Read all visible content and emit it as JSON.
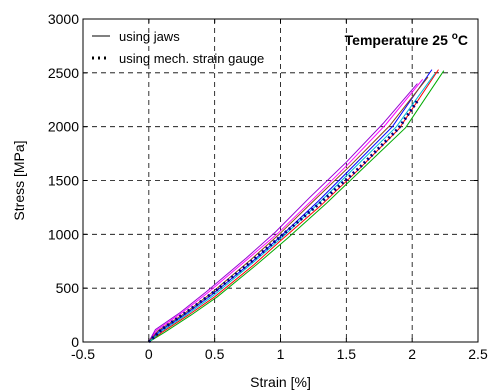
{
  "chart_data": {
    "type": "line",
    "xlabel": "Strain   [%]",
    "ylabel": "Stress   [MPa]",
    "xlim": [
      -0.5,
      2.5
    ],
    "ylim": [
      0,
      3000
    ],
    "xticks": [
      -0.5,
      0,
      0.5,
      1,
      1.5,
      2,
      2.5
    ],
    "xtick_labels": [
      "-0.5",
      "0",
      "0.5",
      "1",
      "1.5",
      "2",
      "2.5"
    ],
    "yticks": [
      0,
      500,
      1000,
      1500,
      2000,
      2500,
      3000
    ],
    "ytick_labels": [
      "0",
      "500",
      "1000",
      "1500",
      "2000",
      "2500",
      "3000"
    ],
    "grid": "dashed",
    "legend_position": "top-left",
    "annotation": {
      "text_before": "Temperature 25 ",
      "superscript": "o",
      "text_after": "C"
    },
    "legend": [
      {
        "label": "using jaws",
        "style": "solid"
      },
      {
        "label": "using mech. strain gauge",
        "style": "dotted"
      }
    ],
    "series": [
      {
        "name": "using jaws",
        "style": "solid",
        "color": "#ff0000",
        "x": [
          0,
          0.1,
          0.3,
          0.5,
          0.8,
          1.0,
          1.3,
          1.6,
          1.9,
          2.2
        ],
        "y": [
          0,
          90,
          250,
          420,
          720,
          940,
          1260,
          1610,
          1980,
          2530
        ]
      },
      {
        "style": "solid",
        "color": "#00aa00",
        "x": [
          0,
          0.12,
          0.32,
          0.52,
          0.82,
          1.05,
          1.35,
          1.65,
          1.95,
          2.24
        ],
        "y": [
          0,
          90,
          250,
          420,
          720,
          960,
          1290,
          1640,
          1990,
          2520
        ]
      },
      {
        "style": "solid",
        "color": "#0000ff",
        "x": [
          0,
          0.08,
          0.28,
          0.48,
          0.78,
          1.0,
          1.28,
          1.55,
          1.85,
          2.15
        ],
        "y": [
          0,
          100,
          260,
          440,
          740,
          980,
          1300,
          1630,
          2000,
          2530
        ]
      },
      {
        "style": "solid",
        "color": "#ff00ff",
        "x": [
          0,
          0.06,
          0.25,
          0.45,
          0.75,
          0.98,
          1.25,
          1.52,
          1.8,
          2.08
        ],
        "y": [
          0,
          110,
          270,
          460,
          770,
          1010,
          1330,
          1660,
          2020,
          2440
        ]
      },
      {
        "style": "solid",
        "color": "#9400d3",
        "x": [
          0,
          0.05,
          0.24,
          0.44,
          0.74,
          0.96,
          1.22,
          1.5,
          1.78,
          2.04
        ],
        "y": [
          0,
          115,
          275,
          470,
          780,
          1020,
          1340,
          1670,
          2030,
          2400
        ]
      },
      {
        "style": "solid",
        "color": "#8b4513",
        "x": [
          0,
          0.07,
          0.27,
          0.47,
          0.77,
          0.99,
          1.26,
          1.54,
          1.83,
          2.12
        ],
        "y": [
          0,
          105,
          265,
          450,
          760,
          1000,
          1320,
          1650,
          2010,
          2460
        ]
      },
      {
        "style": "solid",
        "color": "#00bcd4",
        "x": [
          0,
          0.09,
          0.29,
          0.49,
          0.79,
          1.01,
          1.3,
          1.58,
          1.88,
          2.17
        ],
        "y": [
          0,
          95,
          255,
          430,
          735,
          970,
          1300,
          1640,
          2000,
          2490
        ]
      },
      {
        "name": "using mech. strain gauge",
        "style": "dotted",
        "color": "#000080",
        "x": [
          0,
          0.1,
          0.3,
          0.5,
          0.8,
          1.0,
          1.3,
          1.6,
          1.9,
          2.05
        ],
        "y": [
          0,
          120,
          290,
          470,
          770,
          980,
          1290,
          1620,
          1990,
          2260
        ]
      }
    ]
  }
}
